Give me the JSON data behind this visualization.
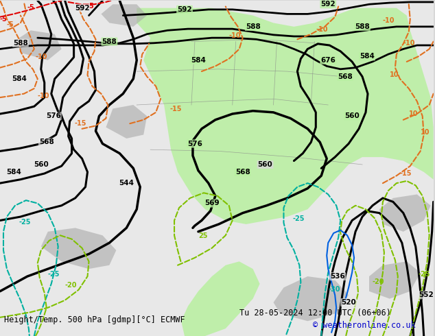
{
  "title_left": "Height/Temp. 500 hPa [gdmp][°C] ECMWF",
  "title_right": "Tu 28-05-2024 12:00 UTC (06+06)",
  "copyright": "© weatheronline.co.uk",
  "bg_color": "#d8d8d8",
  "map_bg": "#e8e8e8",
  "green_fill": "#b8f0a0",
  "fig_width": 6.34,
  "fig_height": 4.9,
  "dpi": 100
}
